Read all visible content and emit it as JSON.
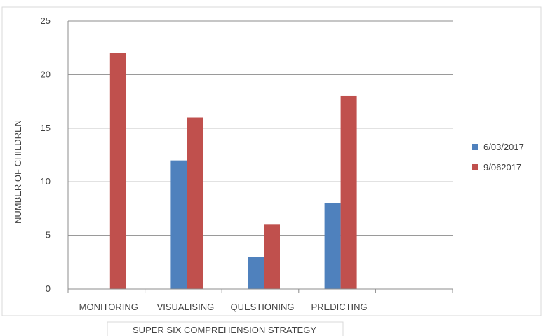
{
  "chart_data": {
    "type": "bar",
    "categories": [
      "MONITORING",
      "VISUALISING",
      "QUESTIONING",
      "PREDICTING",
      ""
    ],
    "series": [
      {
        "name": "6/03/2017",
        "values": [
          0,
          12,
          3,
          8,
          0
        ],
        "color": "#4f81bd"
      },
      {
        "name": "9/062017",
        "values": [
          22,
          16,
          6,
          18,
          0
        ],
        "color": "#c0504d"
      }
    ],
    "ylim": [
      0,
      25
    ],
    "yticks": [
      0,
      5,
      10,
      15,
      20,
      25
    ],
    "ylabel": "NUMBER OF CHILDREN",
    "xlabel": "SUPER SIX COMPREHENSION STRATEGY",
    "grid": true,
    "legend_position": "right"
  }
}
